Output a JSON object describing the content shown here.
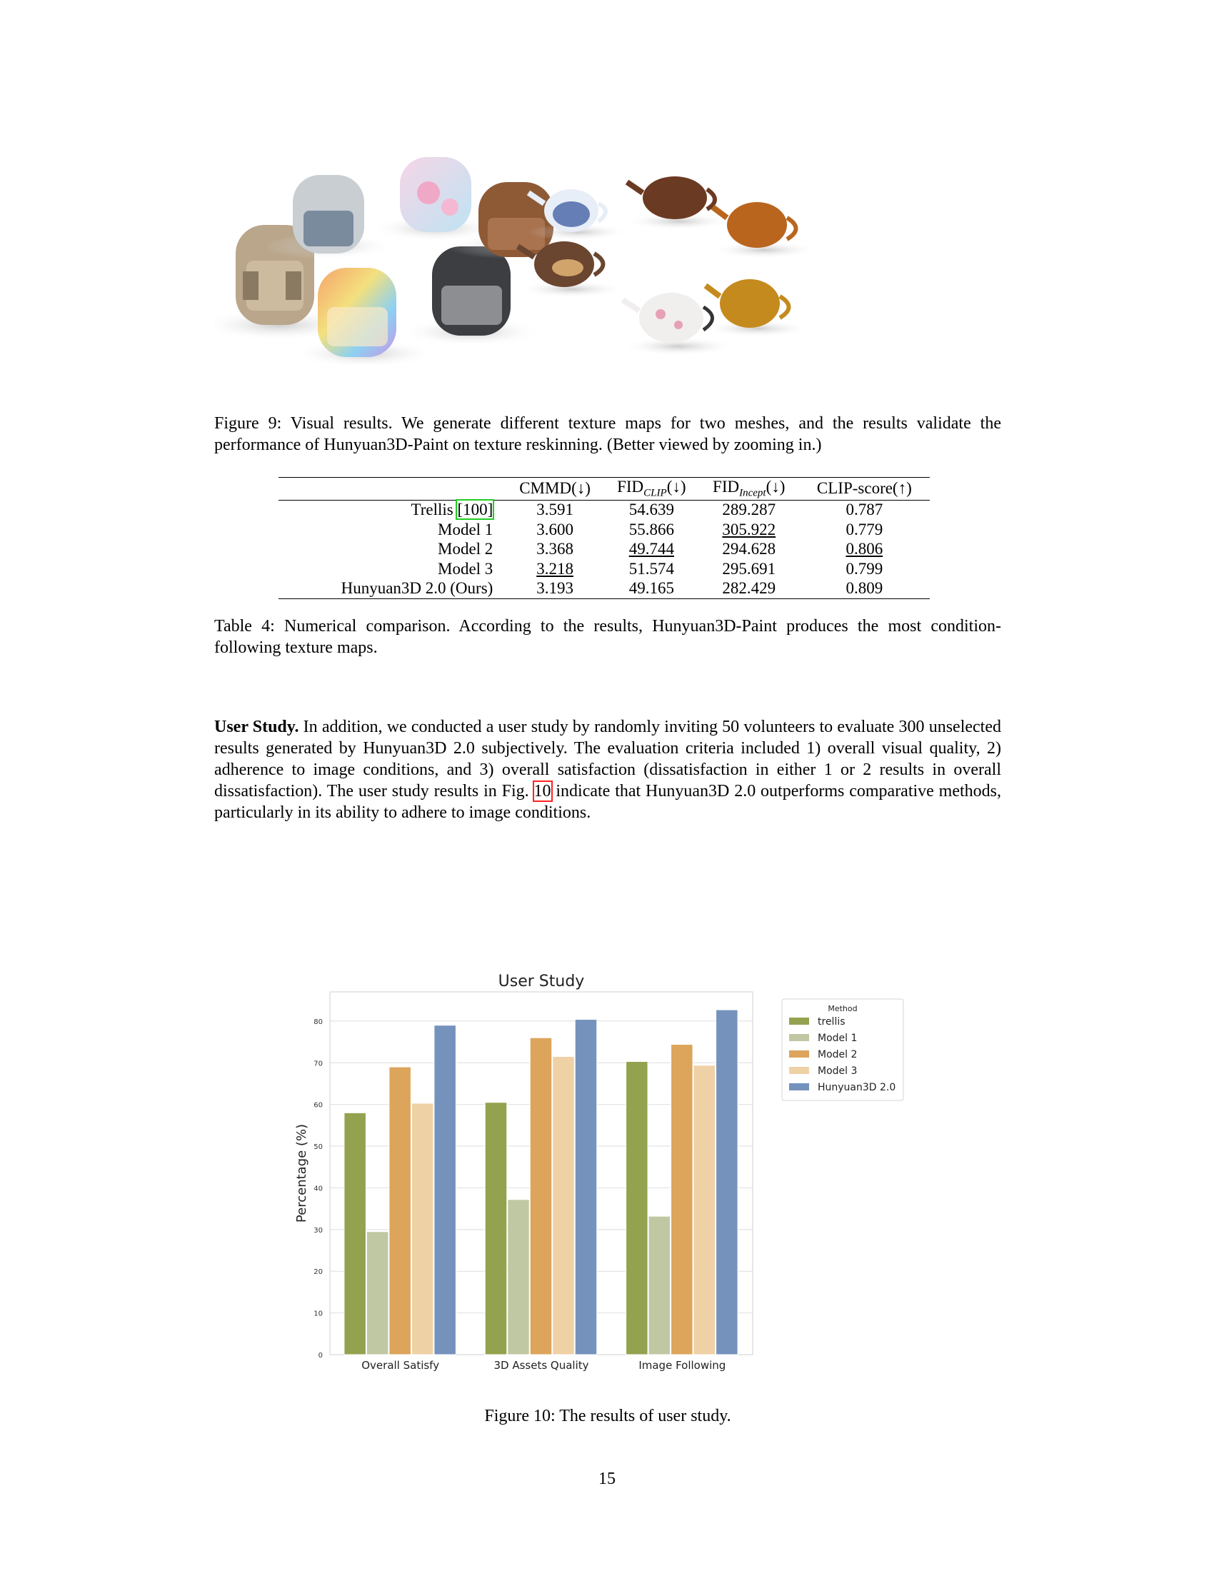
{
  "figure9": {
    "caption": "Figure 9: Visual results. We generate different texture maps for two meshes, and the results validate the performance of Hunyuan3D-Paint on texture reskinning. (Better viewed by zooming in.)"
  },
  "table4": {
    "headers": [
      "",
      "CMMD(↓)",
      "FID",
      "CLIP",
      "(↓)",
      "FID",
      "Incept",
      "(↓)",
      "CLIP-score(↑)"
    ],
    "h_cmmd": "CMMD(↓)",
    "h_fid": "FID",
    "h_clip_sub": "CLIP",
    "h_incept_sub": "Incept",
    "h_arrow_down": "(↓)",
    "h_clipscore": "CLIP-score(↑)",
    "rows": [
      {
        "method": "Trellis",
        "cite": "[100]",
        "cmmd": "3.591",
        "fid_clip": "54.639",
        "fid_incept": "289.287",
        "clip_score": "0.787"
      },
      {
        "method": "Model 1",
        "cmmd": "3.600",
        "fid_clip": "55.866",
        "fid_incept": "305.922",
        "clip_score": "0.779"
      },
      {
        "method": "Model 2",
        "cmmd": "3.368",
        "fid_clip": "49.744",
        "fid_incept": "294.628",
        "clip_score": "0.806"
      },
      {
        "method": "Model 3",
        "cmmd": "3.218",
        "fid_clip": "51.574",
        "fid_incept": "295.691",
        "clip_score": "0.799"
      },
      {
        "method": "Hunyuan3D 2.0 (Ours)",
        "cmmd": "3.193",
        "fid_clip": "49.165",
        "fid_incept": "282.429",
        "clip_score": "0.809"
      }
    ],
    "caption": "Table 4: Numerical comparison. According to the results, Hunyuan3D-Paint produces the most condition-following texture maps."
  },
  "user_study": {
    "heading": "User Study.",
    "text_before_ref": "In addition, we conducted a user study by randomly inviting 50 volunteers to evaluate 300 unselected results generated by Hunyuan3D 2.0 subjectively. The evaluation criteria included 1) overall visual quality, 2) adherence to image conditions, and 3) overall satisfaction (dissatisfaction in either 1 or 2 results in overall dissatisfaction). The user study results in Fig.",
    "ref": "10",
    "text_after_ref": "indicate that Hunyuan3D 2.0 outperforms comparative methods, particularly in its ability to adhere to image conditions."
  },
  "chart_data": {
    "type": "bar",
    "title": "User Study",
    "xlabel": "",
    "ylabel": "Percentage (%)",
    "ylim": [
      0,
      87
    ],
    "yticks": [
      0,
      10,
      20,
      30,
      40,
      50,
      60,
      70,
      80
    ],
    "categories": [
      "Overall Satisfy",
      "3D Assets Quality",
      "Image Following"
    ],
    "legend_title": "Method",
    "legend_position": "outside-right",
    "grid": true,
    "series": [
      {
        "name": "trellis",
        "color": "#93a24f",
        "values": [
          58,
          60.5,
          70.3
        ]
      },
      {
        "name": "Model 1",
        "color": "#bfc8a3",
        "values": [
          29.5,
          37.2,
          33.2
        ]
      },
      {
        "name": "Model 2",
        "color": "#dda45b",
        "values": [
          69,
          76,
          74.4
        ]
      },
      {
        "name": "Model 3",
        "color": "#efd1a6",
        "values": [
          60.3,
          71.5,
          69.4
        ]
      },
      {
        "name": "Hunyuan3D 2.0",
        "color": "#7592bd",
        "values": [
          79,
          80.4,
          82.7
        ]
      }
    ]
  },
  "figure10": {
    "caption": "Figure 10: The results of user study."
  },
  "page_number": "15"
}
